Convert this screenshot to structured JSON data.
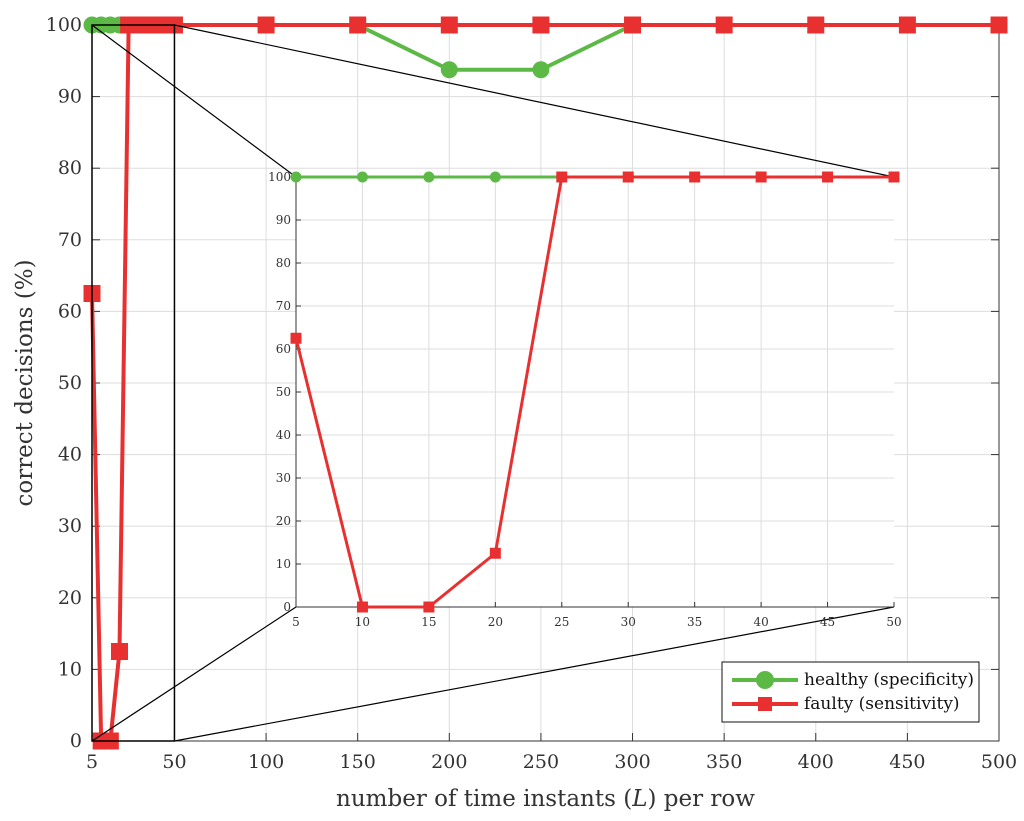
{
  "colors": {
    "healthy": "#5cb946",
    "faulty": "#e83030",
    "grid": "#dddddd",
    "axis": "#333333"
  },
  "chart_data": [
    {
      "type": "line",
      "xlabel": "number of time instants (",
      "xlabel_var": "L",
      "xlabel_suffix": ") per row",
      "ylabel": "correct decisions (%)",
      "xlim": [
        5,
        500
      ],
      "ylim": [
        0,
        100
      ],
      "xticks": [
        5,
        50,
        100,
        150,
        200,
        250,
        300,
        350,
        400,
        450,
        500
      ],
      "yticks": [
        0,
        10,
        20,
        30,
        40,
        50,
        60,
        70,
        80,
        90,
        100
      ],
      "grid": true,
      "legend": "bottom-right",
      "series": [
        {
          "name": "healthy (specificity)",
          "color": "#5cb946",
          "marker": "circle",
          "x": [
            5,
            10,
            15,
            20,
            25,
            30,
            35,
            40,
            45,
            50,
            100,
            150,
            200,
            250,
            300,
            350,
            400,
            450,
            500
          ],
          "y": [
            100,
            100,
            100,
            100,
            100,
            100,
            100,
            100,
            100,
            100,
            100,
            100,
            93.75,
            93.75,
            100,
            100,
            100,
            100,
            100
          ]
        },
        {
          "name": "faulty (sensitivity)",
          "color": "#e83030",
          "marker": "square",
          "x": [
            5,
            10,
            15,
            20,
            25,
            30,
            35,
            40,
            45,
            50,
            100,
            150,
            200,
            250,
            300,
            350,
            400,
            450,
            500
          ],
          "y": [
            62.5,
            0,
            0,
            12.5,
            100,
            100,
            100,
            100,
            100,
            100,
            100,
            100,
            100,
            100,
            100,
            100,
            100,
            100,
            100
          ]
        }
      ]
    },
    {
      "type": "line",
      "role": "inset-zoom",
      "xlim": [
        5,
        50
      ],
      "ylim": [
        0,
        100
      ],
      "xticks": [
        5,
        10,
        15,
        20,
        25,
        30,
        35,
        40,
        45,
        50
      ],
      "yticks": [
        0,
        10,
        20,
        30,
        40,
        50,
        60,
        70,
        80,
        90,
        100
      ],
      "grid": true,
      "series": [
        {
          "color": "#5cb946",
          "marker": "circle",
          "x": [
            5,
            10,
            15,
            20,
            25,
            30,
            35,
            40,
            45,
            50
          ],
          "y": [
            100,
            100,
            100,
            100,
            100,
            100,
            100,
            100,
            100,
            100
          ]
        },
        {
          "color": "#e83030",
          "marker": "square",
          "x": [
            5,
            10,
            15,
            20,
            25,
            30,
            35,
            40,
            45,
            50
          ],
          "y": [
            62.5,
            0,
            0,
            12.5,
            100,
            100,
            100,
            100,
            100,
            100
          ]
        }
      ]
    }
  ]
}
